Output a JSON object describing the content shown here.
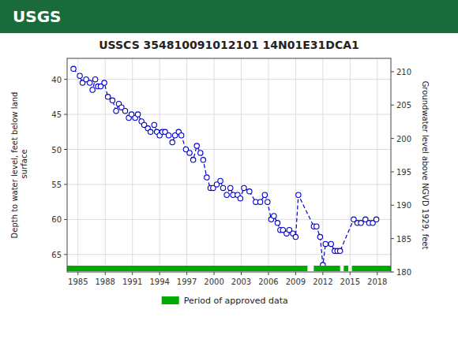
{
  "chart_data": {
    "type": "line",
    "title": "USSCS 354810091012101 14N01E31DCA1",
    "header": {
      "text": "USGS",
      "color": "#1a6b3c"
    },
    "ylabel": "Depth to water level, feet below land\n surface",
    "y2label": "Groundwater level above NGVD 1929, feet",
    "xlim": [
      1983.8,
      2019.5
    ],
    "xticks": [
      1985,
      1988,
      1991,
      1994,
      1997,
      2000,
      2003,
      2006,
      2009,
      2012,
      2015,
      2018
    ],
    "ylim": [
      67.5,
      37.0
    ],
    "yticks": [
      40,
      45,
      50,
      55,
      60,
      65
    ],
    "y2lim": [
      180,
      212
    ],
    "y2ticks": [
      180,
      185,
      190,
      195,
      200,
      205,
      210
    ],
    "grid": true,
    "legend": "bottom",
    "series": [
      {
        "type": "line",
        "color": "#0000cc",
        "line_style": "dashed",
        "marker": "circle",
        "x": [
          1984.5,
          1985.2,
          1985.5,
          1985.9,
          1986.3,
          1986.6,
          1986.9,
          1987.2,
          1987.5,
          1987.9,
          1988.3,
          1988.8,
          1989.2,
          1989.5,
          1989.8,
          1990.2,
          1990.6,
          1990.9,
          1991.3,
          1991.6,
          1992.0,
          1992.3,
          1992.7,
          1993.0,
          1993.4,
          1993.7,
          1994.0,
          1994.3,
          1994.6,
          1995.0,
          1995.4,
          1995.7,
          1996.1,
          1996.4,
          1996.9,
          1997.3,
          1997.7,
          1998.1,
          1998.5,
          1998.8,
          1999.2,
          1999.6,
          1999.9,
          2000.3,
          2000.7,
          2001.0,
          2001.4,
          2001.8,
          2002.1,
          2002.6,
          2002.9,
          2003.3,
          2003.9,
          2004.6,
          2005.1,
          2005.6,
          2005.9,
          2006.3,
          2006.6,
          2007.0,
          2007.3,
          2007.6,
          2008.0,
          2008.3,
          2008.7,
          2009.0,
          2009.3,
          2011.0,
          2011.3,
          2011.7,
          2012.0,
          2012.3,
          2012.9,
          2013.3,
          2013.6,
          2013.9,
          2015.4,
          2015.8,
          2016.2,
          2016.7,
          2017.1,
          2017.5,
          2017.9
        ],
        "values": [
          38.5,
          39.5,
          40.5,
          40.0,
          40.5,
          41.5,
          40.0,
          41.0,
          41.0,
          40.5,
          42.5,
          43.0,
          44.5,
          43.5,
          44.0,
          44.5,
          45.5,
          45.0,
          45.5,
          45.0,
          46.0,
          46.5,
          47.0,
          47.5,
          46.5,
          47.5,
          48.0,
          47.5,
          47.5,
          48.0,
          49.0,
          48.0,
          47.5,
          48.0,
          50.0,
          50.5,
          51.5,
          49.5,
          50.5,
          51.5,
          54.0,
          55.5,
          55.5,
          55.0,
          54.5,
          55.5,
          56.5,
          55.5,
          56.5,
          56.5,
          57.0,
          55.5,
          56.0,
          57.5,
          57.5,
          56.5,
          57.5,
          60.0,
          59.5,
          60.5,
          61.5,
          61.5,
          62.0,
          61.5,
          62.0,
          62.5,
          56.5,
          61.0,
          61.0,
          62.5,
          66.5,
          63.5,
          63.5,
          64.5,
          64.5,
          64.5,
          60.0,
          60.5,
          60.5,
          60.0,
          60.5,
          60.5,
          60.0
        ]
      },
      {
        "type": "span",
        "name": "Period of approved data",
        "color": "#00aa00",
        "segments": [
          [
            1983.8,
            2010.3
          ],
          [
            2011.0,
            2013.9
          ],
          [
            2014.3,
            2014.8
          ],
          [
            2015.2,
            2019.5
          ]
        ],
        "y": 67.0,
        "height": 0.8
      }
    ]
  }
}
